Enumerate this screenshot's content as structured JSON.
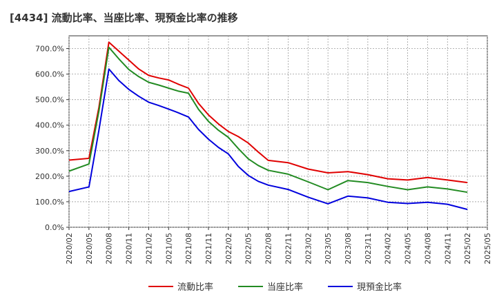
{
  "chart_data": {
    "type": "line",
    "title": "[4434]  流動比率、当座比率、現預金比率の推移",
    "xlabel": "",
    "ylabel": "",
    "ylim": [
      0,
      750
    ],
    "yticks": [
      0,
      100,
      200,
      300,
      400,
      500,
      600,
      700
    ],
    "ytick_labels": [
      "0.0%",
      "100.0%",
      "200.0%",
      "300.0%",
      "400.0%",
      "500.0%",
      "600.0%",
      "700.0%"
    ],
    "xtick_labels": [
      "2020/02",
      "2020/05",
      "2020/08",
      "2020/11",
      "2021/02",
      "2021/05",
      "2021/08",
      "2021/11",
      "2022/02",
      "2022/05",
      "2022/08",
      "2022/11",
      "2023/02",
      "2023/05",
      "2023/08",
      "2023/11",
      "2024/02",
      "2024/05",
      "2024/08",
      "2024/11",
      "2025/02",
      "2025/05"
    ],
    "x_count": 22,
    "legend_position": "bottom",
    "grid": true,
    "series": [
      {
        "name": "流動比率",
        "color": "#e00000",
        "x": [
          0,
          1,
          1.5,
          2,
          2.5,
          3,
          3.5,
          4,
          4.5,
          5,
          5.5,
          6,
          6.5,
          7,
          7.5,
          8,
          8.5,
          9,
          9.5,
          10,
          11,
          12,
          13,
          14,
          15,
          16,
          17,
          18,
          19,
          20
        ],
        "values": [
          263,
          270,
          470,
          725,
          690,
          655,
          620,
          595,
          585,
          577,
          560,
          545,
          485,
          440,
          405,
          375,
          355,
          330,
          295,
          262,
          253,
          228,
          213,
          218,
          206,
          190,
          185,
          195,
          185,
          175
        ]
      },
      {
        "name": "当座比率",
        "color": "#228b22",
        "x": [
          0,
          1,
          1.5,
          2,
          2.5,
          3,
          3.5,
          4,
          4.5,
          5,
          5.5,
          6,
          6.5,
          7,
          7.5,
          8,
          8.5,
          9,
          9.5,
          10,
          11,
          12,
          13,
          14,
          15,
          16,
          17,
          18,
          19,
          20
        ],
        "values": [
          220,
          248,
          455,
          705,
          660,
          618,
          590,
          568,
          557,
          545,
          533,
          525,
          462,
          415,
          380,
          352,
          308,
          268,
          242,
          223,
          208,
          178,
          147,
          183,
          175,
          160,
          147,
          158,
          150,
          137
        ]
      },
      {
        "name": "現預金比率",
        "color": "#0000dd",
        "x": [
          0,
          1,
          1.5,
          2,
          2.5,
          3,
          3.5,
          4,
          4.5,
          5,
          5.5,
          6,
          6.5,
          7,
          7.5,
          8,
          8.5,
          9,
          9.5,
          10,
          11,
          12,
          13,
          14,
          15,
          16,
          17,
          18,
          19,
          20
        ],
        "values": [
          140,
          158,
          380,
          620,
          575,
          540,
          513,
          490,
          477,
          463,
          448,
          432,
          383,
          345,
          313,
          287,
          238,
          203,
          180,
          165,
          148,
          118,
          92,
          122,
          115,
          98,
          93,
          98,
          90,
          70
        ]
      }
    ]
  }
}
